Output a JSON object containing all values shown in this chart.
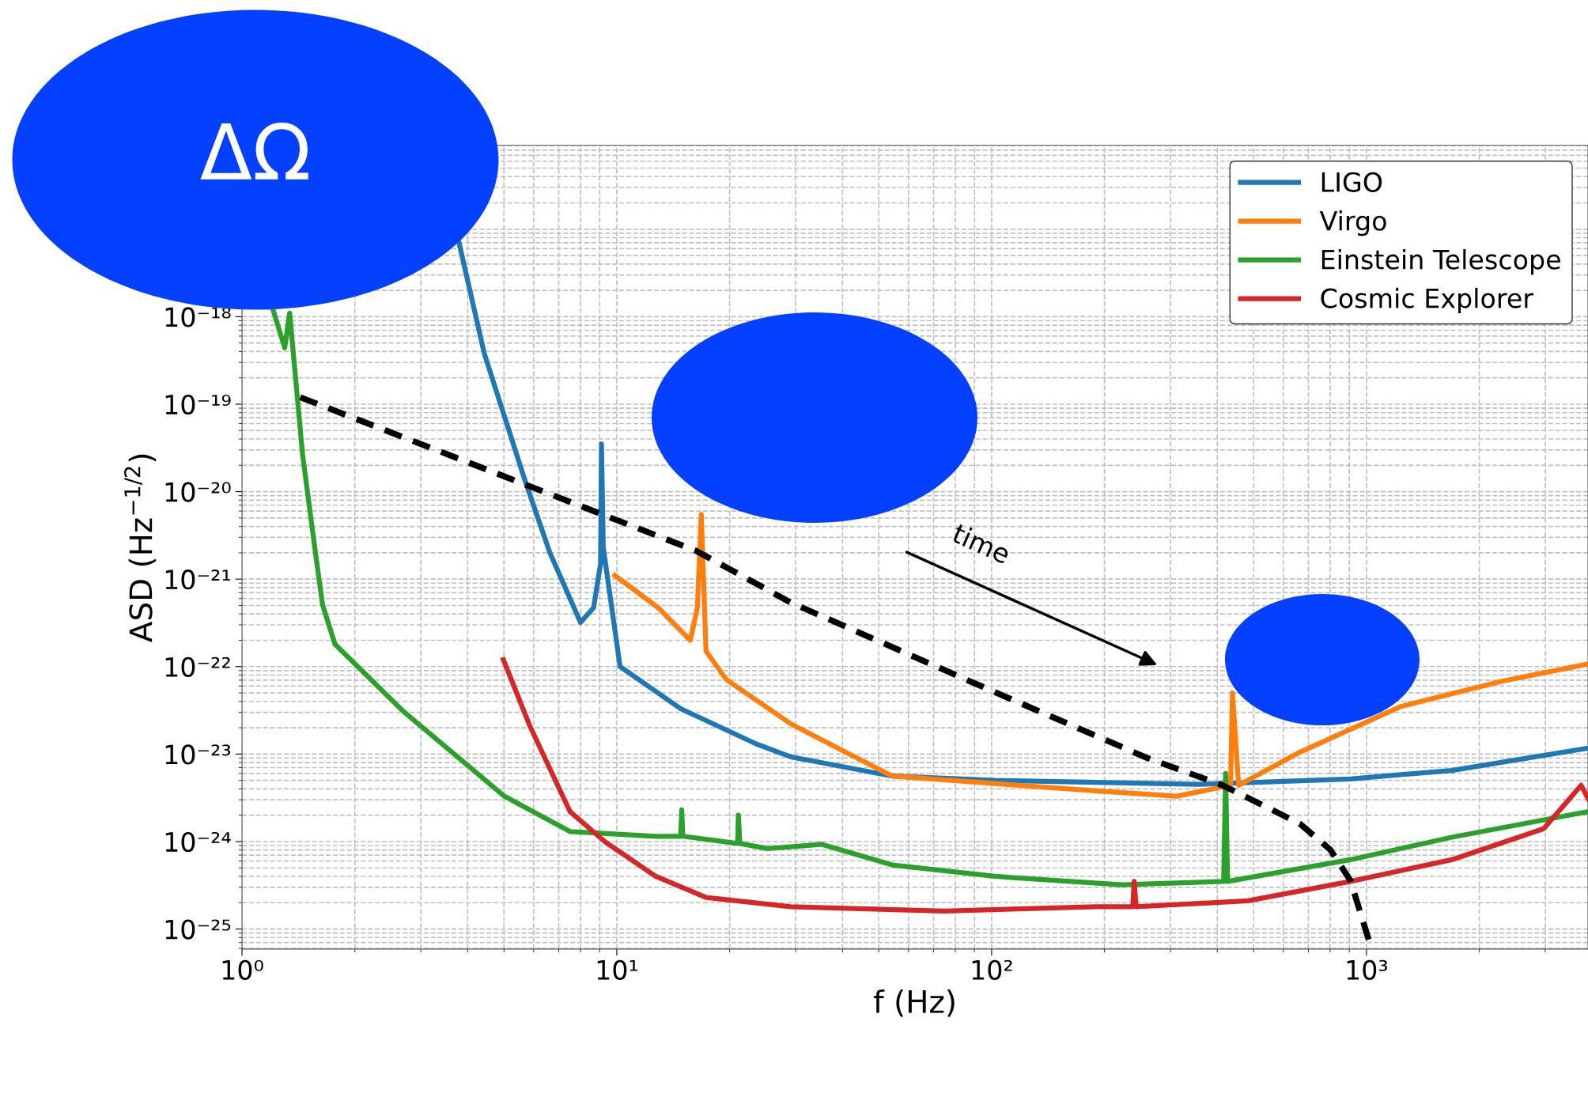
{
  "chart_data": {
    "type": "line",
    "xlabel": "f (Hz)",
    "ylabel": "ASD (Hz$^{−1/2}$)",
    "log": "xy",
    "grid": true,
    "legend": "top right",
    "line_style": "solid",
    "marker": "none",
    "xlim": [
      1,
      3900
    ],
    "ylim": [
      5.9e-26,
      9.1e-17
    ],
    "xticks": [
      {
        "value": 1,
        "label": "10⁰"
      },
      {
        "value": 10,
        "label": "10¹"
      },
      {
        "value": 100,
        "label": "10²"
      },
      {
        "value": 1000,
        "label": "10³"
      }
    ],
    "yticks": [
      {
        "value": 1e-25,
        "label": "10⁻²⁵"
      },
      {
        "value": 1e-24,
        "label": "10⁻²⁴"
      },
      {
        "value": 1e-23,
        "label": "10⁻²³"
      },
      {
        "value": 1e-22,
        "label": "10⁻²²"
      },
      {
        "value": 1e-21,
        "label": "10⁻²¹"
      },
      {
        "value": 1e-20,
        "label": "10⁻²⁰"
      },
      {
        "value": 1e-19,
        "label": "10⁻¹⁹"
      },
      {
        "value": 1e-18,
        "label": "10⁻¹⁸"
      },
      {
        "value": 1e-17,
        "label": null
      }
    ],
    "series": [
      {
        "name": "LIGO",
        "color": "#1f77b4",
        "x": [
          3.79,
          4.43,
          5.67,
          6.63,
          8.0,
          8.67,
          9.05,
          9.1,
          9.2,
          10.2,
          14.8,
          23.6,
          29.1,
          54.3,
          102,
          354,
          906,
          1690,
          3900
        ],
        "values": [
          7.1e-18,
          3.8e-19,
          1.4e-20,
          2e-21,
          3.2e-22,
          4.7e-22,
          1.5e-21,
          3.5e-20,
          2.3e-21,
          1e-22,
          3.3e-23,
          1.3e-23,
          9.3e-24,
          5.6e-24,
          5e-24,
          4.5e-24,
          5.2e-24,
          6.5e-24,
          1.17e-23
        ]
      },
      {
        "name": "Virgo",
        "color": "#ff7f0e",
        "x": [
          9.88,
          12.9,
          15.7,
          16.4,
          16.8,
          17.3,
          19.6,
          29.2,
          54.3,
          102,
          190,
          312,
          401,
          434,
          439,
          456,
          664,
          1236,
          2300,
          3900
        ],
        "values": [
          1.1e-21,
          4.7e-22,
          2e-22,
          4.7e-22,
          5.5e-21,
          1.5e-22,
          7.1e-23,
          2.2e-23,
          5.6e-24,
          4.6e-24,
          3.8e-24,
          3.3e-24,
          4.1e-24,
          4.4e-24,
          5e-23,
          4.4e-24,
          1.05e-23,
          3.5e-23,
          6.8e-23,
          1.07e-22
        ]
      },
      {
        "name": "Einstein Telescope",
        "color": "#2ca02c",
        "x": [
          1.21,
          1.3,
          1.34,
          1.45,
          1.57,
          1.64,
          1.77,
          2.69,
          5.01,
          7.5,
          12.7,
          14.8,
          14.9,
          15.0,
          21.0,
          21.1,
          21.3,
          25.2,
          29.1,
          35.2,
          54.3,
          102,
          222,
          416,
          421,
          426,
          906,
          1690,
          3900
        ],
        "values": [
          1.2e-18,
          4.4e-19,
          1.1e-18,
          2.7e-20,
          2e-21,
          5.1e-22,
          1.8e-22,
          3.1e-23,
          3.3e-24,
          1.3e-24,
          1.15e-24,
          1.15e-24,
          2.3e-24,
          1.15e-24,
          9.5e-25,
          2e-24,
          9.5e-25,
          8.3e-25,
          8.7e-25,
          9.3e-25,
          5.4e-25,
          4e-25,
          3.2e-25,
          3.5e-25,
          6e-24,
          3.5e-25,
          6.2e-25,
          1.12e-24,
          2.2e-24
        ]
      },
      {
        "name": "Cosmic Explorer",
        "color": "#d62728",
        "x": [
          4.98,
          5.86,
          7.5,
          9.34,
          12.7,
          17.3,
          29.1,
          74.6,
          190,
          238,
          240,
          243,
          483,
          906,
          1690,
          2970,
          3740,
          3900
        ],
        "values": [
          1.2e-22,
          2.1e-23,
          2.2e-24,
          9.8e-25,
          4e-25,
          2.3e-25,
          1.8e-25,
          1.6e-25,
          1.8e-25,
          1.8e-25,
          3.5e-25,
          1.8e-25,
          2.1e-25,
          3.5e-25,
          6.2e-25,
          1.4e-24,
          4.4e-24,
          3.1e-24
        ]
      },
      {
        "color": "#000000",
        "line_style": "dashed",
        "x": [
          1.43,
          16.3,
          29.1,
          102,
          259,
          413,
          664,
          800,
          906,
          1025,
          1050
        ],
        "values": [
          1.2e-19,
          2.1e-21,
          5.4e-22,
          5.1e-23,
          9.1e-24,
          4.4e-24,
          1.6e-24,
          8.1e-25,
          3.6e-25,
          6.5e-26,
          6e-26
        ]
      }
    ],
    "annotations": [
      "ΔΩ",
      "time"
    ]
  }
}
